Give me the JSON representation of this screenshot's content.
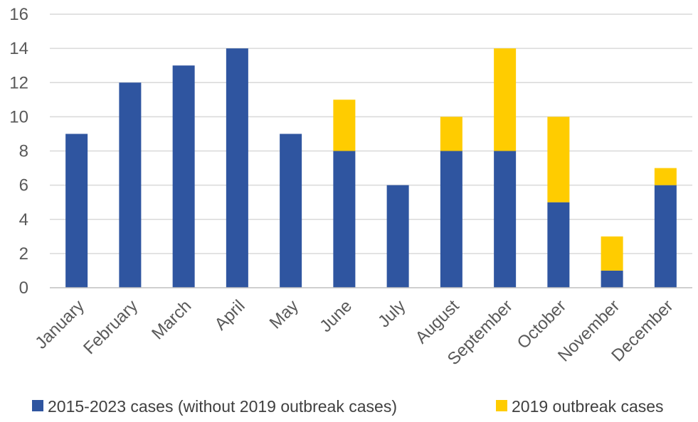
{
  "chart_data": {
    "type": "bar",
    "stacked": true,
    "categories": [
      "January",
      "February",
      "March",
      "April",
      "May",
      "June",
      "July",
      "August",
      "September",
      "October",
      "November",
      "December"
    ],
    "series": [
      {
        "name": "2015-2023 cases (without 2019 outbreak cases)",
        "color": "#2F55A0",
        "values": [
          9,
          12,
          13,
          14,
          9,
          8,
          6,
          8,
          8,
          5,
          1,
          6
        ]
      },
      {
        "name": "2019 outbreak cases",
        "color": "#FFCC00",
        "values": [
          0,
          0,
          0,
          0,
          0,
          3,
          0,
          2,
          6,
          5,
          2,
          1
        ]
      }
    ],
    "ylim": [
      0,
      16
    ],
    "yticks": [
      "0",
      "2",
      "4",
      "6",
      "8",
      "10",
      "12",
      "14",
      "16"
    ],
    "grid": true,
    "legend_position": "bottom"
  }
}
